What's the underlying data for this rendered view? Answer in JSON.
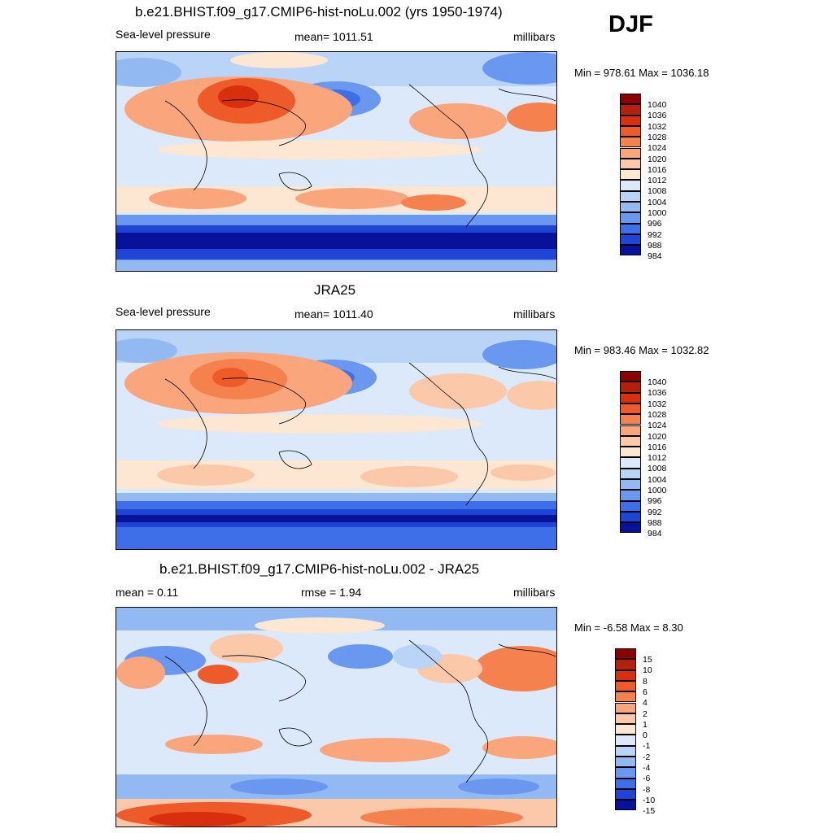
{
  "season": "DJF",
  "units": "millibars",
  "panels": [
    {
      "title": "b.e21.BHIST.f09_g17.CMIP6-hist-noLu.002 (yrs 1950-1974)",
      "left_label": "Sea-level pressure",
      "center_label": "mean= 1011.51",
      "right_label": "millibars",
      "minmax": "Min = 978.61 Max = 1036.18",
      "colorbar_labels": [
        "1040",
        "1036",
        "1032",
        "1028",
        "1024",
        "1020",
        "1016",
        "1012",
        "1008",
        "1004",
        "1000",
        "996",
        "992",
        "988",
        "984"
      ]
    },
    {
      "title": "JRA25",
      "left_label": "Sea-level pressure",
      "center_label": "mean= 1011.40",
      "right_label": "millibars",
      "minmax": "Min = 983.46 Max = 1032.82",
      "colorbar_labels": [
        "1040",
        "1036",
        "1032",
        "1028",
        "1024",
        "1020",
        "1016",
        "1012",
        "1008",
        "1004",
        "1000",
        "996",
        "992",
        "988",
        "984"
      ]
    },
    {
      "title": "b.e21.BHIST.f09_g17.CMIP6-hist-noLu.002 - JRA25",
      "left_label": "mean =   0.11",
      "center_label": "rmse =   1.94",
      "right_label": "millibars",
      "minmax": "Min =  -6.58 Max =   8.30",
      "colorbar_labels": [
        "15",
        "10",
        "8",
        "6",
        "4",
        "2",
        "1",
        "0",
        "-1",
        "-2",
        "-4",
        "-6",
        "-8",
        "-10",
        "-15"
      ]
    }
  ],
  "colorbar_colors": [
    "#8b0000",
    "#b5200c",
    "#d8300e",
    "#ee5a2a",
    "#f5814f",
    "#fba57c",
    "#fcc8aa",
    "#fde6d2",
    "#dbe9fb",
    "#b9d4f7",
    "#93b9f3",
    "#6a97ef",
    "#3f6fe8",
    "#1f45d6",
    "#08119a"
  ]
}
